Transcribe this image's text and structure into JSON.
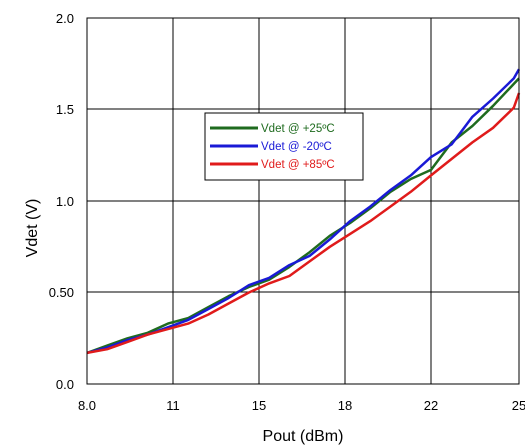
{
  "chart_data": {
    "type": "line",
    "xlabel": "Pout (dBm)",
    "ylabel": "Vdet  (V)",
    "xlim": [
      8,
      25
    ],
    "ylim": [
      0,
      2
    ],
    "x_ticks": [
      "8.0",
      "11",
      "15",
      "18",
      "22",
      "25"
    ],
    "y_ticks": [
      "0.0",
      "0.50",
      "1.0",
      "1.5",
      "2.0"
    ],
    "grid": true,
    "legend_position": "upper-center",
    "series": [
      {
        "name": "Vdet @ +25ºC",
        "color": "#1f6b1f",
        "x": [
          8.0,
          8.8,
          9.6,
          10.4,
          11.2,
          12.0,
          12.8,
          13.6,
          14.4,
          15.2,
          16.0,
          16.8,
          17.6,
          18.4,
          19.2,
          20.0,
          20.8,
          21.6,
          22.4,
          23.2,
          24.0,
          24.8,
          25.0
        ],
        "y": [
          0.17,
          0.21,
          0.25,
          0.28,
          0.33,
          0.36,
          0.42,
          0.48,
          0.53,
          0.57,
          0.64,
          0.72,
          0.81,
          0.88,
          0.96,
          1.05,
          1.12,
          1.17,
          1.32,
          1.41,
          1.52,
          1.64,
          1.67
        ]
      },
      {
        "name": "Vdet @ -20ºC",
        "color": "#1a1ad6",
        "x": [
          8.0,
          8.8,
          9.6,
          10.4,
          11.2,
          12.0,
          12.8,
          13.6,
          14.4,
          15.2,
          16.0,
          16.8,
          17.6,
          18.4,
          19.2,
          20.0,
          20.8,
          21.6,
          22.4,
          23.2,
          24.0,
          24.8,
          25.0
        ],
        "y": [
          0.17,
          0.2,
          0.24,
          0.27,
          0.31,
          0.35,
          0.41,
          0.47,
          0.54,
          0.58,
          0.65,
          0.7,
          0.79,
          0.89,
          0.97,
          1.06,
          1.14,
          1.24,
          1.31,
          1.46,
          1.56,
          1.67,
          1.72
        ]
      },
      {
        "name": "Vdet @ +85ºC",
        "color": "#e01b1b",
        "x": [
          8.0,
          8.8,
          9.6,
          10.4,
          11.2,
          12.0,
          12.8,
          13.6,
          14.4,
          15.2,
          16.0,
          16.8,
          17.6,
          18.4,
          19.2,
          20.0,
          20.8,
          21.6,
          22.4,
          23.2,
          24.0,
          24.8,
          25.0
        ],
        "y": [
          0.17,
          0.19,
          0.23,
          0.27,
          0.3,
          0.33,
          0.38,
          0.44,
          0.5,
          0.55,
          0.59,
          0.67,
          0.75,
          0.82,
          0.89,
          0.97,
          1.05,
          1.14,
          1.23,
          1.32,
          1.4,
          1.51,
          1.59
        ]
      }
    ]
  }
}
